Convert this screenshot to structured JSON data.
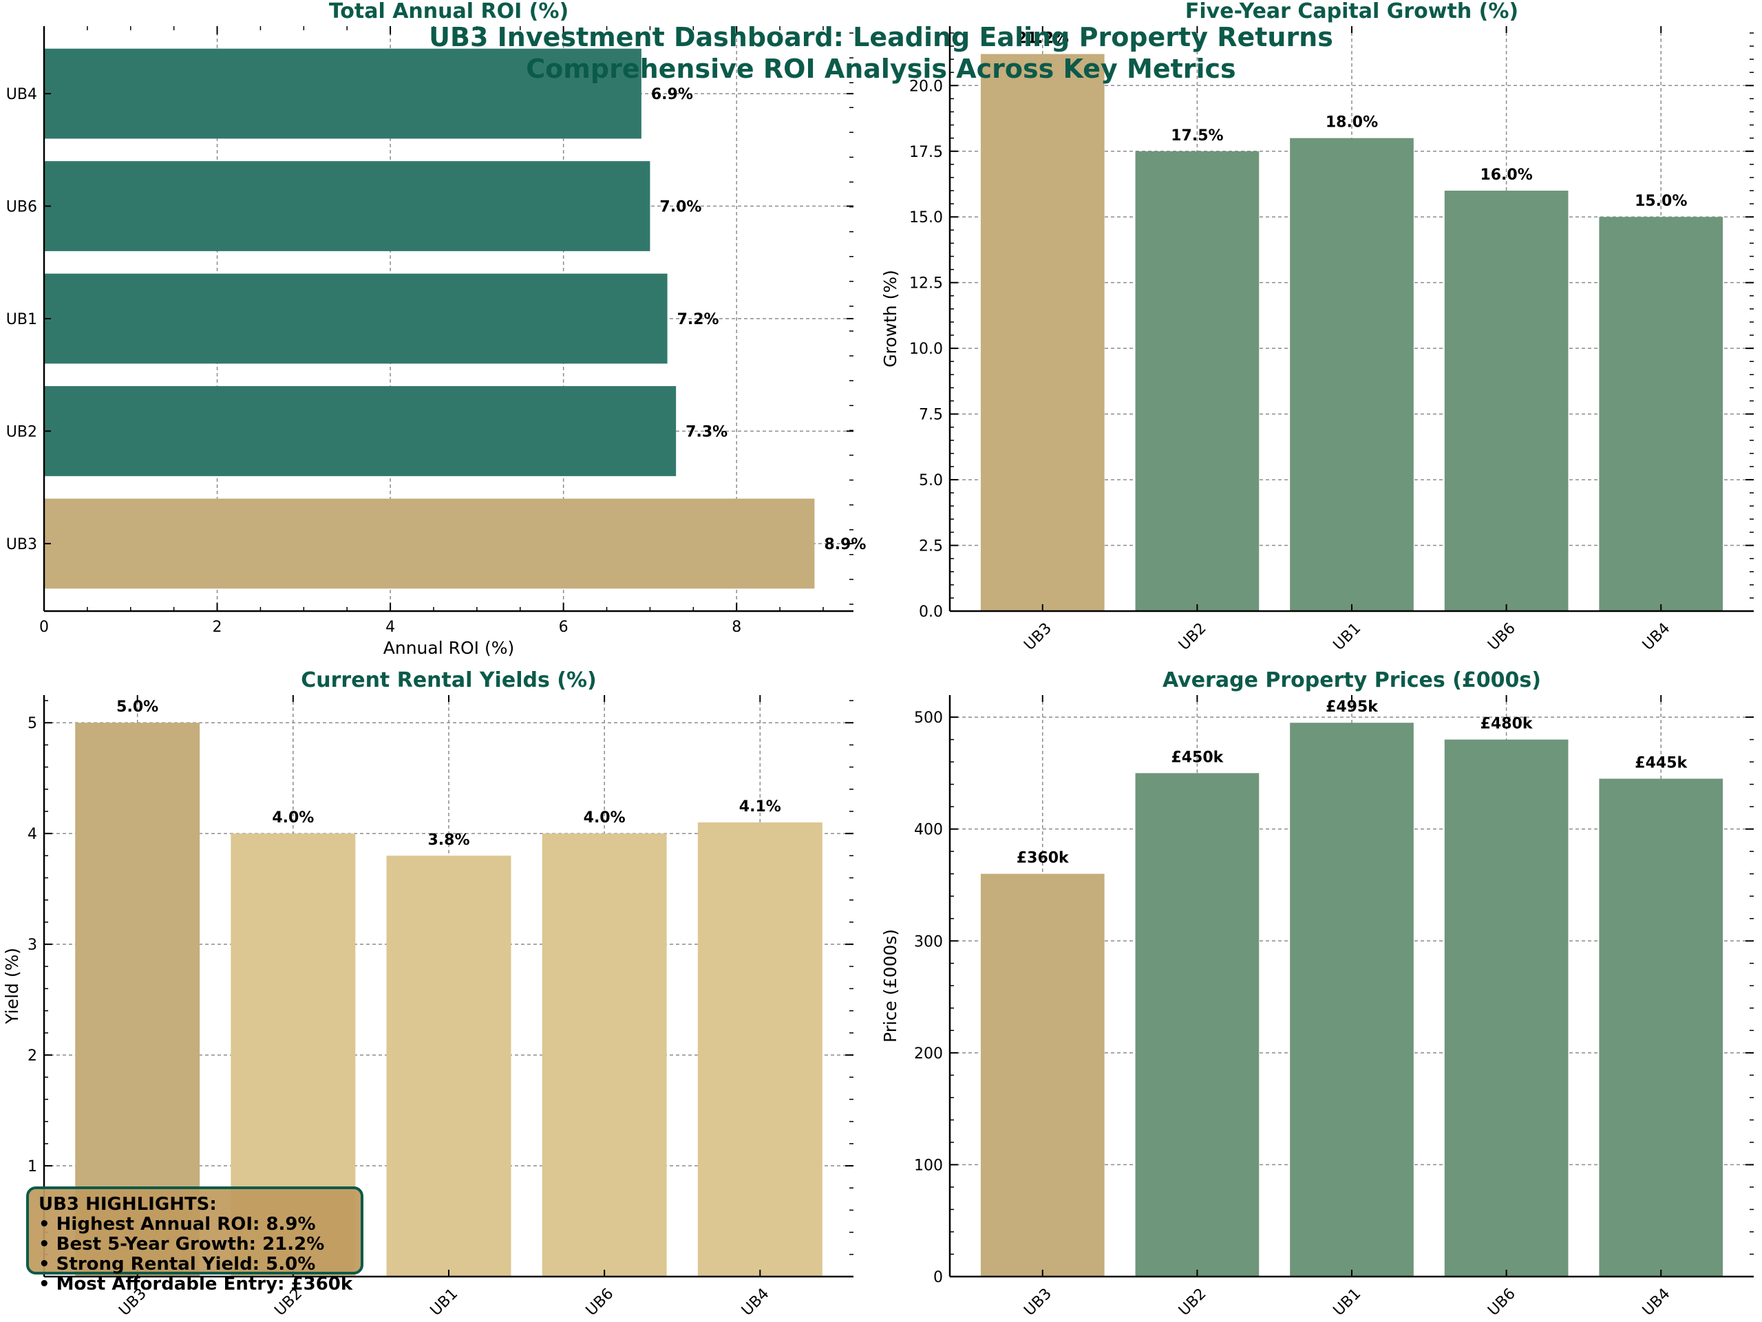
{
  "header": {
    "title": "UB3 Investment Dashboard: Leading Ealing Property Returns",
    "subtitle": "Comprehensive ROI Analysis Across Key Metrics"
  },
  "colors": {
    "highlight": "#c5ad7c",
    "roi_bar": "#31786b",
    "growth_bar": "#6e967a",
    "yield_bar": "#dcc692",
    "price_bar": "#6e967a",
    "title": "#0b5a4a",
    "box_border": "#0b5a4a"
  },
  "highlights": {
    "title": "UB3 HIGHLIGHTS:",
    "lines": [
      "• Highest Annual ROI: 8.9%",
      "• Best 5-Year Growth: 21.2%",
      "• Strong Rental Yield: 5.0%",
      "• Most Affordable Entry: £360k"
    ]
  },
  "chart_data": [
    {
      "type": "bar",
      "orientation": "horizontal",
      "title": "Total Annual ROI (%)",
      "xlabel": "Annual ROI (%)",
      "ylabel": "",
      "categories": [
        "UB3",
        "UB2",
        "UB1",
        "UB6",
        "UB4"
      ],
      "values": [
        8.9,
        7.3,
        7.2,
        7.0,
        6.9
      ],
      "labels": [
        "8.9%",
        "7.3%",
        "7.2%",
        "7.0%",
        "6.9%"
      ],
      "xlim": [
        0,
        9.35
      ],
      "xticks": [
        0,
        2,
        4,
        6,
        8
      ],
      "tick_labels": [
        "0",
        "2",
        "4",
        "6",
        "8"
      ],
      "highlight_category": "UB3",
      "grid": true
    },
    {
      "type": "bar",
      "title": "Five-Year Capital Growth (%)",
      "xlabel": "",
      "ylabel": "Growth (%)",
      "categories": [
        "UB3",
        "UB2",
        "UB1",
        "UB6",
        "UB4"
      ],
      "values": [
        21.2,
        17.5,
        18.0,
        16.0,
        15.0
      ],
      "labels": [
        "21.2%",
        "17.5%",
        "18.0%",
        "16.0%",
        "15.0%"
      ],
      "ylim": [
        0,
        22.26
      ],
      "yticks": [
        0,
        2.5,
        5,
        7.5,
        10,
        12.5,
        15,
        17.5,
        20
      ],
      "tick_labels": [
        "0.0",
        "2.5",
        "5.0",
        "7.5",
        "10.0",
        "12.5",
        "15.0",
        "17.5",
        "20.0"
      ],
      "highlight_category": "UB3",
      "grid": true
    },
    {
      "type": "bar",
      "title": "Current Rental Yields (%)",
      "xlabel": "",
      "ylabel": "Yield (%)",
      "categories": [
        "UB3",
        "UB2",
        "UB1",
        "UB6",
        "UB4"
      ],
      "values": [
        5.0,
        4.0,
        3.8,
        4.0,
        4.1
      ],
      "labels": [
        "5.0%",
        "4.0%",
        "3.8%",
        "4.0%",
        "4.1%"
      ],
      "ylim": [
        0,
        5.25
      ],
      "yticks": [
        1,
        2,
        3,
        4,
        5
      ],
      "tick_labels": [
        "1",
        "2",
        "3",
        "4",
        "5"
      ],
      "highlight_category": "UB3",
      "grid": true
    },
    {
      "type": "bar",
      "title": "Average Property Prices (£000s)",
      "xlabel": "",
      "ylabel": "Price (£000s)",
      "categories": [
        "UB3",
        "UB2",
        "UB1",
        "UB6",
        "UB4"
      ],
      "values": [
        360,
        450,
        495,
        480,
        445
      ],
      "labels": [
        "£360k",
        "£450k",
        "£495k",
        "£480k",
        "£445k"
      ],
      "ylim": [
        0,
        519.75
      ],
      "yticks": [
        0,
        100,
        200,
        300,
        400,
        500
      ],
      "tick_labels": [
        "0",
        "100",
        "200",
        "300",
        "400",
        "500"
      ],
      "highlight_category": "UB3",
      "grid": true
    }
  ]
}
